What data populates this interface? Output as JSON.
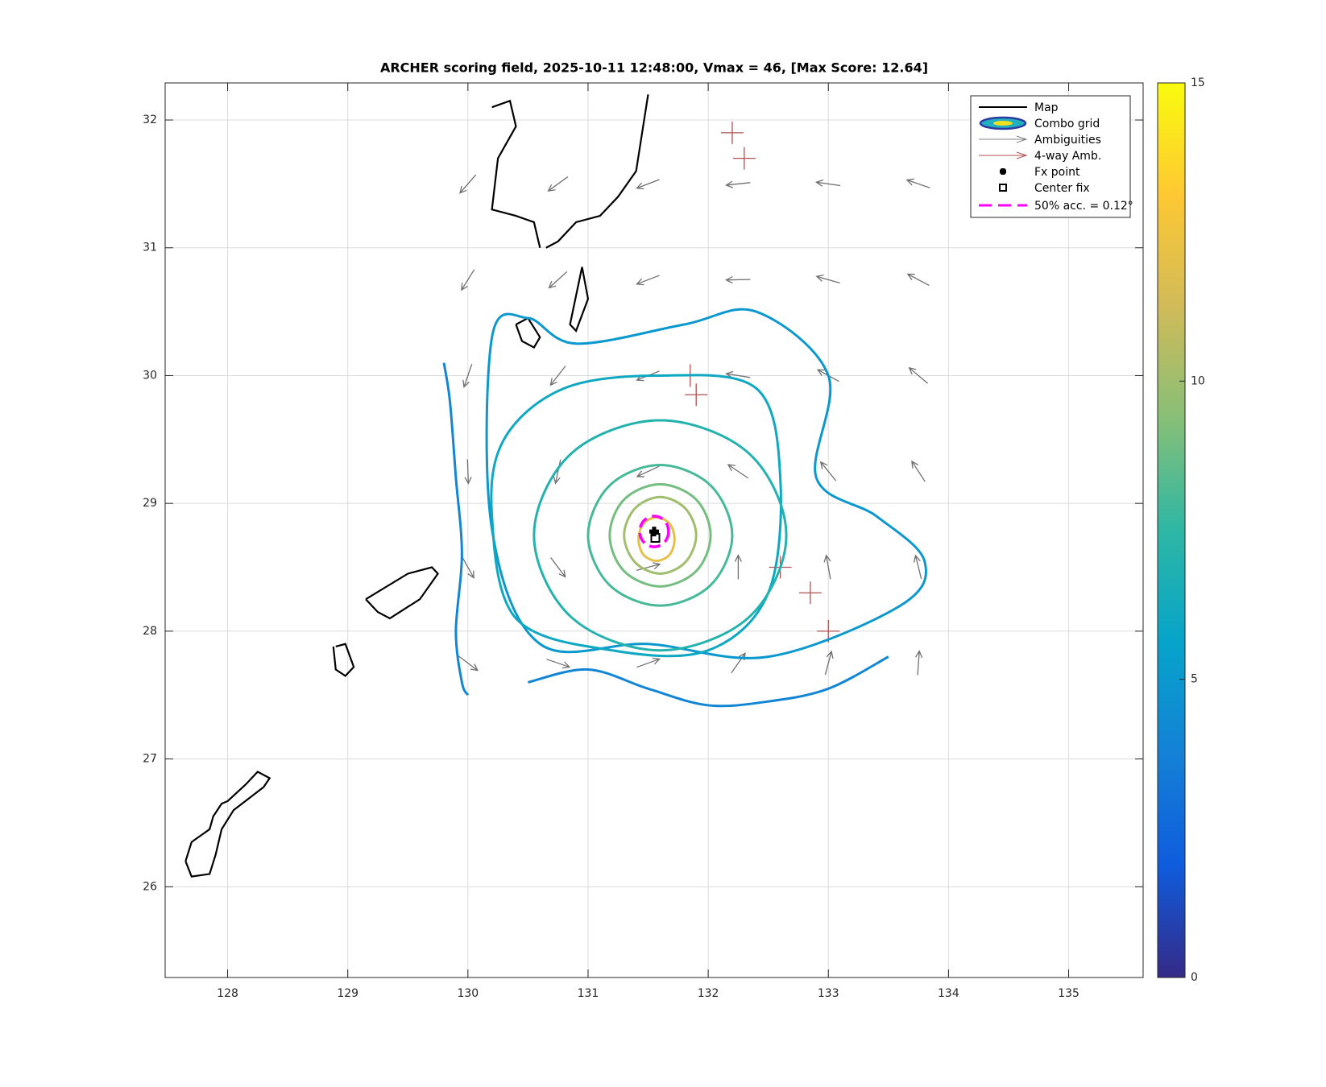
{
  "chart_data": {
    "type": "vector-field",
    "title": "ARCHER scoring field, 2025-10-11 12:48:00, Vmax = 46, [Max Score: 12.64]",
    "xlim": [
      127.48,
      135.62
    ],
    "ylim": [
      25.29,
      32.29
    ],
    "xticks": [
      128,
      129,
      130,
      131,
      132,
      133,
      134,
      135
    ],
    "yticks": [
      26,
      27,
      28,
      29,
      30,
      31,
      32
    ],
    "grid": true,
    "clim": [
      0,
      15
    ],
    "cticks": [
      0,
      5,
      10,
      15
    ],
    "legend": [
      "Map",
      "Combo grid",
      "Ambiguities",
      "4-way Amb.",
      "Fx point",
      "Center fix",
      "50% acc. = 0.12°"
    ],
    "legend_position": "northeast",
    "fx_point": [
      131.55,
      28.78
    ],
    "center_fix": [
      131.56,
      28.73
    ],
    "accuracy_radius": 0.12,
    "arrows": {
      "x": [
        130,
        130.75,
        131.5,
        132.25,
        133,
        133.75,
        130,
        130.75,
        131.5,
        132.25,
        133,
        133.75,
        130,
        130.75,
        131.5,
        132.25,
        133,
        133.75,
        130,
        130.75,
        131.5,
        132.25,
        133,
        133.75,
        130,
        130.75,
        131.5,
        132.25,
        133,
        133.75,
        130,
        130.75,
        131.5,
        132.25,
        133,
        133.75
      ],
      "y": [
        27.75,
        27.75,
        27.75,
        27.75,
        27.75,
        27.75,
        28.5,
        28.5,
        28.5,
        28.5,
        28.5,
        28.5,
        29.25,
        29.25,
        29.25,
        29.25,
        29.25,
        29.25,
        30,
        30,
        30,
        30,
        30,
        30,
        30.75,
        30.75,
        30.75,
        30.75,
        30.75,
        30.75,
        31.5,
        31.5,
        31.5,
        31.5,
        31.5,
        31.5
      ],
      "angle": [
        323,
        341,
        20,
        55,
        75,
        86,
        299,
        307,
        15,
        90,
        100,
        104,
        272,
        258,
        205,
        146,
        129,
        123,
        251,
        232,
        202,
        171,
        151,
        140,
        238,
        222,
        201,
        181,
        164,
        152,
        229,
        216,
        201,
        186,
        172,
        161
      ]
    },
    "four_way": {
      "x": [
        131.85,
        131.9,
        132.2,
        132.3,
        132.6,
        132.85,
        133.0
      ],
      "y": [
        30.0,
        29.85,
        31.9,
        31.7,
        28.5,
        28.3,
        28.0
      ]
    },
    "contours": [
      {
        "level": 4,
        "x": [
          129.8,
          129.85,
          129.9,
          129.95,
          129.9,
          129.95,
          130.0
        ],
        "y": [
          30.1,
          29.8,
          29.2,
          28.6,
          28.0,
          27.6,
          27.5
        ],
        "closed": false
      },
      {
        "level": 4,
        "x": [
          130.5,
          131,
          131.5,
          132,
          132.5,
          133,
          133.5
        ],
        "y": [
          27.6,
          27.7,
          27.55,
          27.42,
          27.45,
          27.55,
          27.8
        ],
        "closed": false
      },
      {
        "level": 5,
        "x": [
          130.2,
          130.5,
          130.9,
          131.8,
          132.4,
          133.0,
          132.9,
          133.4,
          133.8,
          133.6,
          132.5,
          131.5,
          130.6,
          130.2
        ],
        "y": [
          30.3,
          30.45,
          30.25,
          30.4,
          30.5,
          30.0,
          29.2,
          28.9,
          28.55,
          28.2,
          27.8,
          27.9,
          27.9,
          28.8
        ],
        "closed": true
      },
      {
        "level": 6,
        "x": [
          130.3,
          130.8,
          131.6,
          132.4,
          132.6,
          132.5,
          132.0,
          131.2,
          130.4,
          130.2
        ],
        "y": [
          29.5,
          29.9,
          30.0,
          29.9,
          29.2,
          28.3,
          27.85,
          27.85,
          28.1,
          28.9
        ],
        "closed": true
      },
      {
        "level": 7,
        "x": [
          132.65,
          132.34,
          131.6,
          130.86,
          130.55,
          130.86,
          131.6,
          132.34
        ],
        "y": [
          28.75,
          29.39,
          29.65,
          29.39,
          28.75,
          28.11,
          27.85,
          28.11
        ],
        "closed": true
      },
      {
        "level": 8,
        "x": [
          132.2,
          132.02,
          131.6,
          131.18,
          131.0,
          131.18,
          131.6,
          132.02
        ],
        "y": [
          28.75,
          29.14,
          29.3,
          29.14,
          28.75,
          28.36,
          28.2,
          28.36
        ],
        "closed": true
      },
      {
        "level": 9,
        "x": [
          132.02,
          131.9,
          131.6,
          131.3,
          131.18,
          131.3,
          131.6,
          131.9
        ],
        "y": [
          28.75,
          29.03,
          29.15,
          29.03,
          28.75,
          28.47,
          28.35,
          28.47
        ],
        "closed": true
      },
      {
        "level": 10,
        "x": [
          131.9,
          131.81,
          131.6,
          131.39,
          131.3,
          131.39,
          131.6,
          131.81
        ],
        "y": [
          28.75,
          28.96,
          29.05,
          28.96,
          28.75,
          28.54,
          28.45,
          28.54
        ],
        "closed": true
      },
      {
        "level": 12,
        "x": [
          131.72,
          131.68,
          131.57,
          131.46,
          131.42,
          131.46,
          131.57,
          131.68
        ],
        "y": [
          28.72,
          28.84,
          28.89,
          28.84,
          28.72,
          28.6,
          28.55,
          28.6
        ],
        "closed": true
      }
    ],
    "coastlines": [
      {
        "x": [
          127.65,
          127.7,
          127.85,
          127.9,
          127.95,
          128.05,
          128.3,
          128.35,
          128.25,
          128.15,
          128.0,
          127.95,
          127.88,
          127.85,
          127.7,
          127.65
        ],
        "y": [
          26.2,
          26.08,
          26.1,
          26.25,
          26.45,
          26.6,
          26.78,
          26.85,
          26.9,
          26.8,
          26.67,
          26.65,
          26.55,
          26.45,
          26.35,
          26.2
        ]
      },
      {
        "x": [
          128.9,
          128.98,
          129.05,
          128.98,
          128.9,
          128.88
        ],
        "y": [
          27.88,
          27.9,
          27.72,
          27.65,
          27.7,
          27.88
        ]
      },
      {
        "x": [
          129.15,
          129.5,
          129.7,
          129.75,
          129.6,
          129.35,
          129.25,
          129.15
        ],
        "y": [
          28.25,
          28.45,
          28.5,
          28.45,
          28.25,
          28.1,
          28.15,
          28.25
        ]
      },
      {
        "x": [
          130.95,
          131.0,
          130.9,
          130.85,
          130.95
        ],
        "y": [
          30.85,
          30.6,
          30.35,
          30.4,
          30.85
        ]
      },
      {
        "x": [
          130.4,
          130.5,
          130.6,
          130.55,
          130.45,
          130.4
        ],
        "y": [
          30.4,
          30.45,
          30.3,
          30.22,
          30.27,
          30.4
        ]
      },
      {
        "x": [
          130.2,
          130.35,
          130.4,
          130.25,
          130.2,
          130.4,
          130.55,
          130.6
        ],
        "y": [
          32.1,
          32.15,
          31.95,
          31.7,
          31.3,
          31.25,
          31.2,
          31.0
        ]
      },
      {
        "x": [
          130.65,
          130.75,
          130.9,
          131.1,
          131.25,
          131.4,
          131.5
        ],
        "y": [
          31.0,
          31.05,
          31.2,
          31.25,
          31.4,
          31.6,
          32.2
        ]
      }
    ]
  }
}
